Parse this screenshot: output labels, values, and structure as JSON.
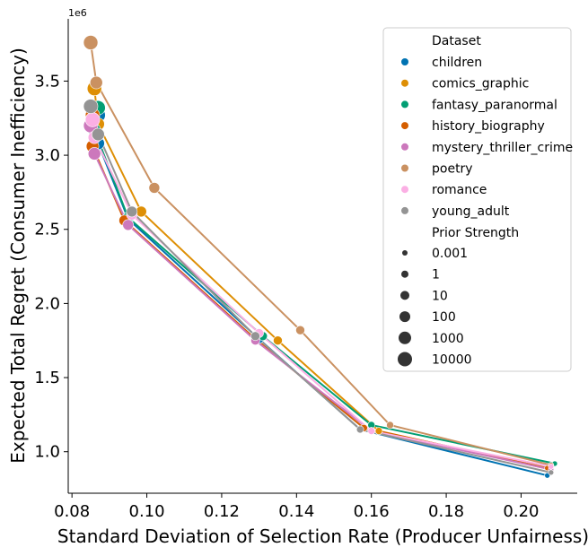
{
  "chart_data": {
    "type": "line",
    "title": "",
    "xlabel": "Standard Deviation of Selection Rate (Producer Unfairness)",
    "ylabel": "Expected Total Regret (Consumer Inefficiency)",
    "y_offset_label": "1e6",
    "xlim": [
      0.079,
      0.215
    ],
    "ylim": [
      0.72,
      3.92
    ],
    "xticks": [
      0.08,
      0.1,
      0.12,
      0.14,
      0.16,
      0.18,
      0.2
    ],
    "xtick_labels": [
      "0.08",
      "0.10",
      "0.12",
      "0.14",
      "0.16",
      "0.18",
      "0.20"
    ],
    "yticks": [
      1.0,
      1.5,
      2.0,
      2.5,
      3.0,
      3.5
    ],
    "ytick_labels": [
      "1.0",
      "1.5",
      "2.0",
      "2.5",
      "3.0",
      "3.5"
    ],
    "prior_strengths": [
      0.001,
      1,
      10,
      100,
      1000,
      10000
    ],
    "legend": {
      "hue_title": "Dataset",
      "size_title": "Prior Strength",
      "size_labels": [
        "0.001",
        "1",
        "10",
        "100",
        "1000",
        "10000"
      ],
      "placement": "upper-right"
    },
    "series": [
      {
        "name": "children",
        "color": "#0173b2",
        "x": [
          0.207,
          0.157,
          0.13,
          0.095,
          0.087,
          0.087
        ],
        "y": [
          0.84,
          1.15,
          1.76,
          2.57,
          3.08,
          3.27
        ]
      },
      {
        "name": "comics_graphic",
        "color": "#de8f05",
        "x": [
          0.208,
          0.162,
          0.135,
          0.0985,
          0.087,
          0.086
        ],
        "y": [
          0.88,
          1.14,
          1.75,
          2.62,
          3.21,
          3.45
        ]
      },
      {
        "name": "fantasy_paranormal",
        "color": "#029e73",
        "x": [
          0.209,
          0.16,
          0.131,
          0.095,
          0.086,
          0.087
        ],
        "y": [
          0.92,
          1.18,
          1.78,
          2.58,
          3.17,
          3.32
        ]
      },
      {
        "name": "history_biography",
        "color": "#d55e00",
        "x": [
          0.207,
          0.158,
          0.129,
          0.094,
          0.0855,
          0.0855
        ],
        "y": [
          0.89,
          1.16,
          1.76,
          2.56,
          3.06,
          3.27
        ]
      },
      {
        "name": "mystery_thriller_crime",
        "color": "#cc78bc",
        "x": [
          0.208,
          0.16,
          0.129,
          0.095,
          0.086,
          0.085
        ],
        "y": [
          0.88,
          1.14,
          1.75,
          2.53,
          3.01,
          3.2
        ]
      },
      {
        "name": "poetry",
        "color": "#ca9161",
        "x": [
          0.208,
          0.165,
          0.141,
          0.102,
          0.0865,
          0.085
        ],
        "y": [
          0.91,
          1.18,
          1.82,
          2.78,
          3.49,
          3.76
        ]
      },
      {
        "name": "romance",
        "color": "#fbafe4",
        "x": [
          0.208,
          0.16,
          0.13,
          0.096,
          0.086,
          0.0855
        ],
        "y": [
          0.9,
          1.14,
          1.8,
          2.6,
          3.12,
          3.24
        ]
      },
      {
        "name": "young_adult",
        "color": "#949494",
        "x": [
          0.208,
          0.157,
          0.129,
          0.096,
          0.087,
          0.085
        ],
        "y": [
          0.86,
          1.15,
          1.78,
          2.62,
          3.14,
          3.33
        ]
      }
    ]
  }
}
